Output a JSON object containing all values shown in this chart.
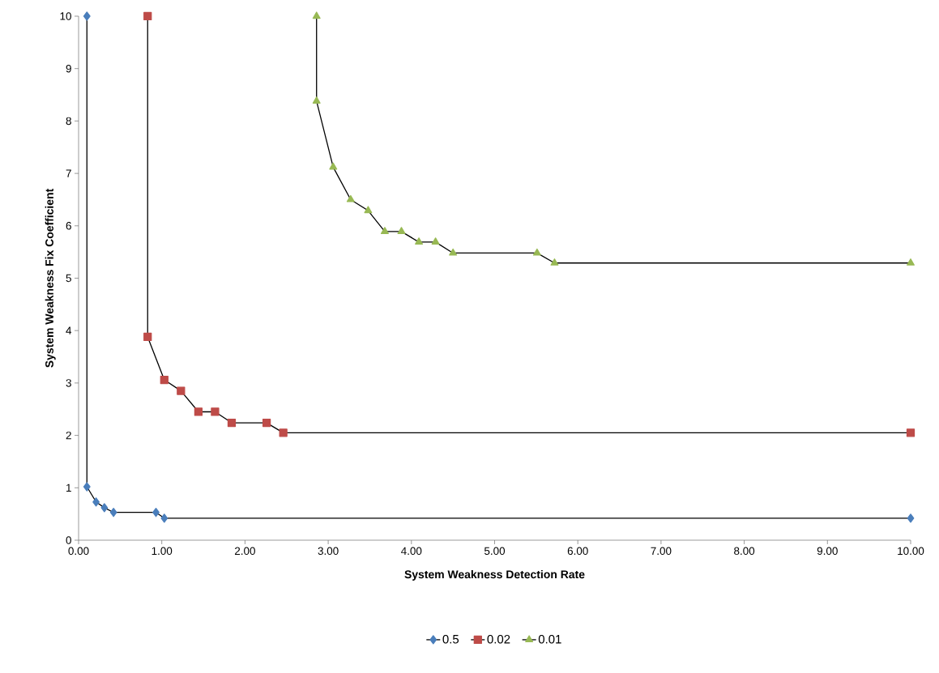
{
  "chart_data": {
    "type": "line",
    "xlabel": "System Weakness Detection Rate",
    "ylabel": "System Weakness Fix Coefficient",
    "series": [
      {
        "name": "0.5",
        "color": "#4a7ebb",
        "marker": "diamond",
        "x": [
          0.1,
          0.1,
          0.21,
          0.31,
          0.42,
          0.93,
          1.03,
          10
        ],
        "values": [
          10,
          1.02,
          0.73,
          0.62,
          0.53,
          0.53,
          0.42,
          0.42
        ]
      },
      {
        "name": "0.02",
        "color": "#be4b48",
        "marker": "square",
        "x": [
          0.83,
          0.83,
          1.03,
          1.23,
          1.44,
          1.64,
          1.84,
          2.26,
          2.46,
          10
        ],
        "values": [
          10,
          3.88,
          3.06,
          2.85,
          2.45,
          2.45,
          2.24,
          2.24,
          2.05,
          2.05
        ]
      },
      {
        "name": "0.01",
        "color": "#98b954",
        "marker": "triangle",
        "x": [
          2.86,
          2.86,
          3.06,
          3.27,
          3.48,
          3.68,
          3.88,
          4.09,
          4.29,
          4.5,
          5.51,
          5.72,
          10
        ],
        "values": [
          10,
          8.38,
          7.12,
          6.5,
          6.29,
          5.89,
          5.89,
          5.69,
          5.69,
          5.48,
          5.48,
          5.29,
          5.29
        ]
      }
    ],
    "xlim": [
      0,
      10
    ],
    "ylim": [
      0,
      10
    ],
    "xticks": [
      {
        "value": 0,
        "label": "0.00"
      },
      {
        "value": 1,
        "label": "1.00"
      },
      {
        "value": 2,
        "label": "2.00"
      },
      {
        "value": 3,
        "label": "3.00"
      },
      {
        "value": 4,
        "label": "4.00"
      },
      {
        "value": 5,
        "label": "5.00"
      },
      {
        "value": 6,
        "label": "6.00"
      },
      {
        "value": 7,
        "label": "7.00"
      },
      {
        "value": 8,
        "label": "8.00"
      },
      {
        "value": 9,
        "label": "9.00"
      },
      {
        "value": 10,
        "label": "10.00"
      }
    ],
    "yticks": [
      0,
      1,
      2,
      3,
      4,
      5,
      6,
      7,
      8,
      9,
      10
    ],
    "grid": false,
    "legend": "bottom",
    "line_style": "solid"
  }
}
